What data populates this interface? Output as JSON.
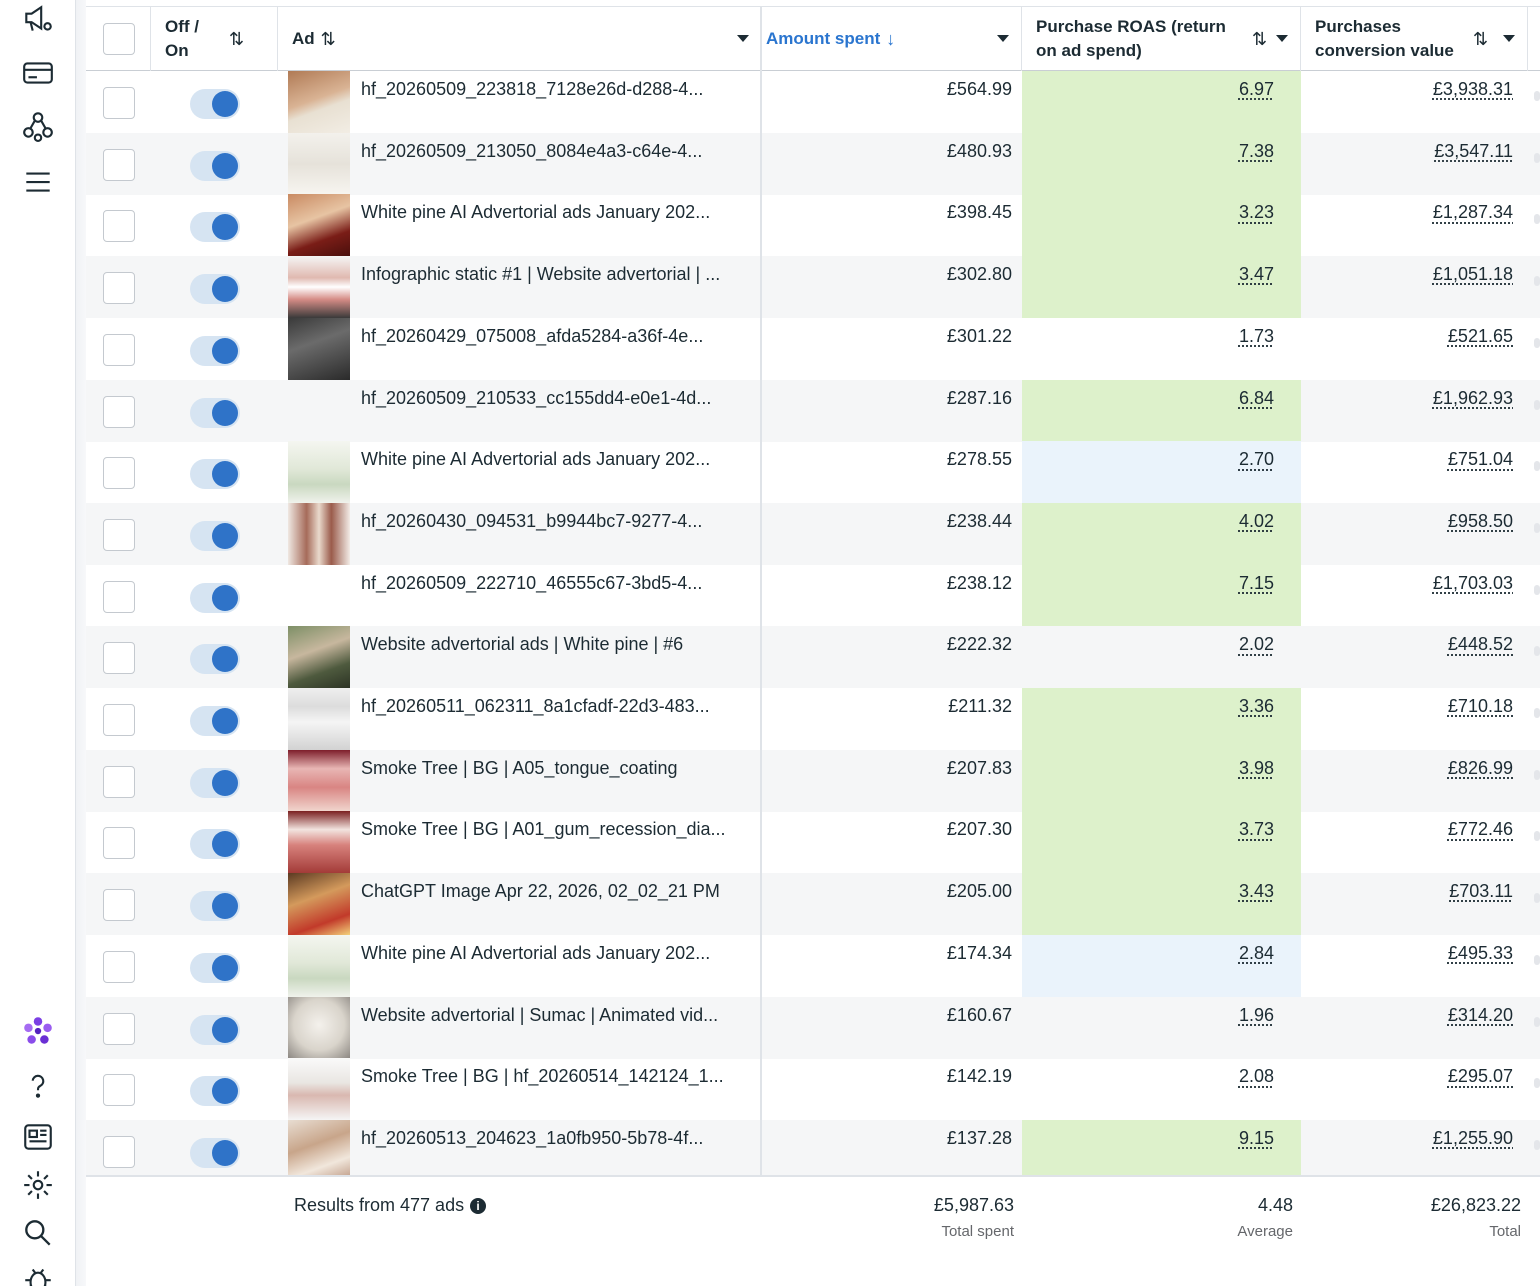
{
  "columns": {
    "toggle": "Off / On",
    "ad": "Ad",
    "amount_spent": "Amount spent",
    "roas": "Purchase ROAS (return on ad spend)",
    "conversion_value": "Purchases conversion value"
  },
  "sort_icons": {
    "both": "⇅",
    "down": "↓"
  },
  "colors": {
    "green": "#ddf1cb",
    "blue": "#eaf3fb",
    "accent": "#2f73c8",
    "link": "#1877f2"
  },
  "rows": [
    {
      "name": "hf_20260509_223818_7128e26d-d288-4...",
      "spent": "£564.99",
      "roas": "6.97",
      "value": "£3,938.31",
      "hl": "green",
      "thumb": "photo-brown"
    },
    {
      "name": "hf_20260509_213050_8084e4a3-c64e-4...",
      "spent": "£480.93",
      "roas": "7.38",
      "value": "£3,547.11",
      "hl": "green",
      "thumb": "doc"
    },
    {
      "name": "White pine AI Advertorial ads January 202...",
      "spent": "£398.45",
      "roas": "3.23",
      "value": "£1,287.34",
      "hl": "green",
      "thumb": "photo-red"
    },
    {
      "name": "Infographic static #1 | Website advertorial | ...",
      "spent": "£302.80",
      "roas": "3.47",
      "value": "£1,051.18",
      "hl": "green",
      "thumb": "teeth"
    },
    {
      "name": "hf_20260429_075008_afda5284-a36f-4e...",
      "spent": "£301.22",
      "roas": "1.73",
      "value": "£521.65",
      "hl": "none",
      "thumb": "dark"
    },
    {
      "name": "hf_20260509_210533_cc155dd4-e0e1-4d...",
      "spent": "£287.16",
      "roas": "6.84",
      "value": "£1,962.93",
      "hl": "green",
      "thumb": "none"
    },
    {
      "name": "White pine AI Advertorial ads January 202...",
      "spent": "£278.55",
      "roas": "2.70",
      "value": "£751.04",
      "hl": "blue",
      "thumb": "doc-green"
    },
    {
      "name": "hf_20260430_094531_b9944bc7-9277-4...",
      "spent": "£238.44",
      "roas": "4.02",
      "value": "£958.50",
      "hl": "green",
      "thumb": "legs"
    },
    {
      "name": "hf_20260509_222710_46555c67-3bd5-4...",
      "spent": "£238.12",
      "roas": "7.15",
      "value": "£1,703.03",
      "hl": "green",
      "thumb": "none"
    },
    {
      "name": "Website advertorial ads | White pine | #6",
      "spent": "£222.32",
      "roas": "2.02",
      "value": "£448.52",
      "hl": "none",
      "thumb": "photo-green"
    },
    {
      "name": "hf_20260511_062311_8a1cfadf-22d3-483...",
      "spent": "£211.32",
      "roas": "3.36",
      "value": "£710.18",
      "hl": "green",
      "thumb": "text"
    },
    {
      "name": "Smoke Tree | BG | A05_tongue_coating",
      "spent": "£207.83",
      "roas": "3.98",
      "value": "£826.99",
      "hl": "green",
      "thumb": "tongue"
    },
    {
      "name": "Smoke Tree | BG | A01_gum_recession_dia...",
      "spent": "£207.30",
      "roas": "3.73",
      "value": "£772.46",
      "hl": "green",
      "thumb": "gums"
    },
    {
      "name": "ChatGPT Image Apr 22, 2026, 02_02_21 PM",
      "spent": "£205.00",
      "roas": "3.43",
      "value": "£703.11",
      "hl": "green",
      "thumb": "photo-orange"
    },
    {
      "name": "White pine AI Advertorial ads January 202...",
      "spent": "£174.34",
      "roas": "2.84",
      "value": "£495.33",
      "hl": "blue",
      "thumb": "doc-green"
    },
    {
      "name": "Website advertorial | Sumac | Animated vid...",
      "spent": "£160.67",
      "roas": "1.96",
      "value": "£314.20",
      "hl": "none",
      "thumb": "tooth"
    },
    {
      "name": "Smoke Tree | BG | hf_20260514_142124_1...",
      "spent": "£142.19",
      "roas": "2.08",
      "value": "£295.07",
      "hl": "none",
      "thumb": "doc-light"
    },
    {
      "name": "hf_20260513_204623_1a0fb950-5b78-4f...",
      "spent": "£137.28",
      "roas": "9.15",
      "value": "£1,255.90",
      "hl": "green",
      "thumb": "feet"
    }
  ],
  "footer": {
    "results": "Results from 477 ads",
    "total_spent": "£5,987.63",
    "total_spent_label": "Total spent",
    "avg_roas": "4.48",
    "avg_roas_label": "Average",
    "total_value": "£26,823.22",
    "total_value_label": "Total"
  },
  "rail_icons": [
    "megaphone-gear-icon",
    "billing-card-icon",
    "audience-network-icon",
    "menu-icon",
    "meta-ai-icon",
    "help-icon",
    "news-icon",
    "settings-icon",
    "search-icon",
    "bug-report-icon"
  ]
}
